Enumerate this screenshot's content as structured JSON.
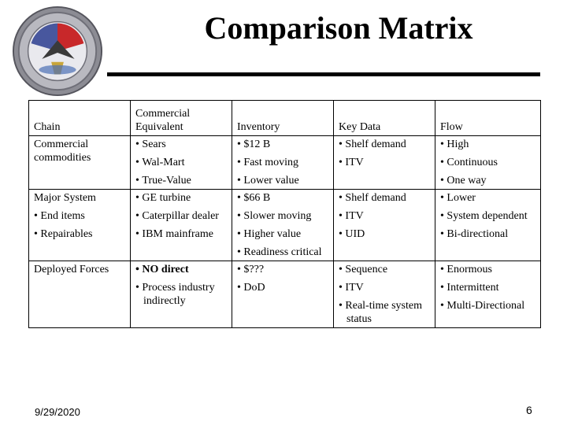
{
  "title": "Comparison Matrix",
  "colors": {
    "seal_rim": "#6f6f78",
    "seal_red": "#c8282a",
    "seal_blue": "#2b3d8f"
  },
  "icons": {
    "seal": "emblem-seal-icon"
  },
  "table": {
    "headers": [
      "Chain",
      "Commercial Equivalent",
      "Inventory",
      "Key Data",
      "Flow"
    ],
    "header_lines": [
      [
        "Chain"
      ],
      [
        "Commercial",
        "Equivalent"
      ],
      [
        "Inventory"
      ],
      [
        "Key Data"
      ],
      [
        "Flow"
      ]
    ],
    "rows": [
      {
        "chain": {
          "title": "Commercial commodities",
          "bullets": []
        },
        "cells": [
          [
            "Sears",
            "Wal-Mart",
            "True-Value"
          ],
          [
            "$12 B",
            "Fast moving",
            "Lower value"
          ],
          [
            "Shelf demand",
            "ITV"
          ],
          [
            "High",
            "Continuous",
            "One way"
          ]
        ]
      },
      {
        "chain": {
          "title": "Major System",
          "bullets": [
            "End items",
            "Repairables"
          ]
        },
        "cells": [
          [
            "GE turbine",
            "Caterpillar dealer",
            "IBM mainframe"
          ],
          [
            "$66 B",
            "Slower moving",
            "Higher value",
            "Readiness critical"
          ],
          [
            "Shelf demand",
            "ITV",
            "UID"
          ],
          [
            "Lower",
            "System dependent",
            "Bi-directional"
          ]
        ]
      },
      {
        "chain": {
          "title": "Deployed Forces",
          "bullets": []
        },
        "cells": [
          [
            "NO direct",
            "Process industry indirectly"
          ],
          [
            "$???",
            "DoD"
          ],
          [
            "Sequence",
            "ITV",
            "Real-time system status"
          ],
          [
            "Enormous",
            "Intermittent",
            "Multi-Directional"
          ]
        ]
      }
    ],
    "bold_items": [
      "NO direct"
    ]
  },
  "footer": {
    "date": "9/29/2020",
    "page": "6"
  }
}
